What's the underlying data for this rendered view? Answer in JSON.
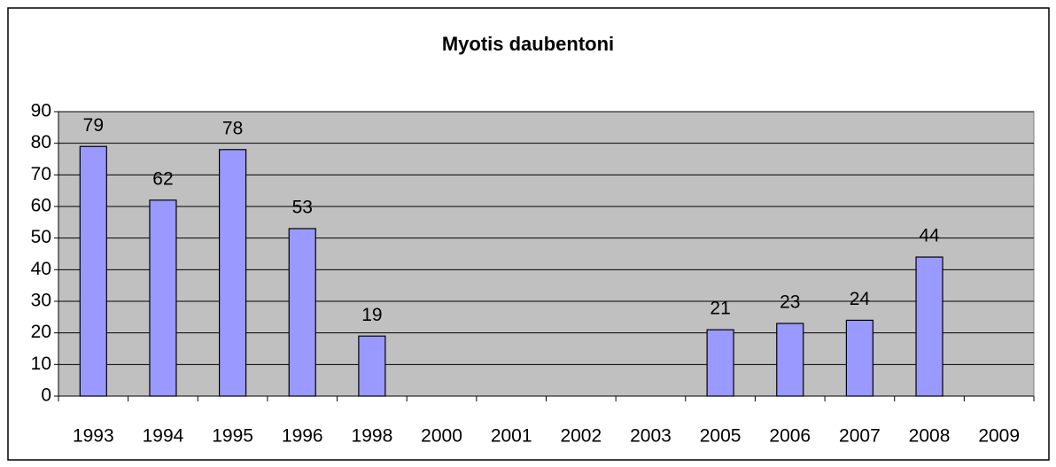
{
  "chart_data": {
    "type": "bar",
    "title": "Myotis daubentoni",
    "categories": [
      "1993",
      "1994",
      "1995",
      "1996",
      "1998",
      "2000",
      "2001",
      "2002",
      "2003",
      "2005",
      "2006",
      "2007",
      "2008",
      "2009"
    ],
    "values": [
      79,
      62,
      78,
      53,
      19,
      null,
      null,
      null,
      null,
      21,
      23,
      24,
      44,
      null
    ],
    "color": "#9999ff",
    "plot_background": "#c0c0c0",
    "ylim": [
      0,
      90
    ],
    "yticks": [
      0,
      10,
      20,
      30,
      40,
      50,
      60,
      70,
      80,
      90
    ],
    "grid": true,
    "data_labels": true
  }
}
